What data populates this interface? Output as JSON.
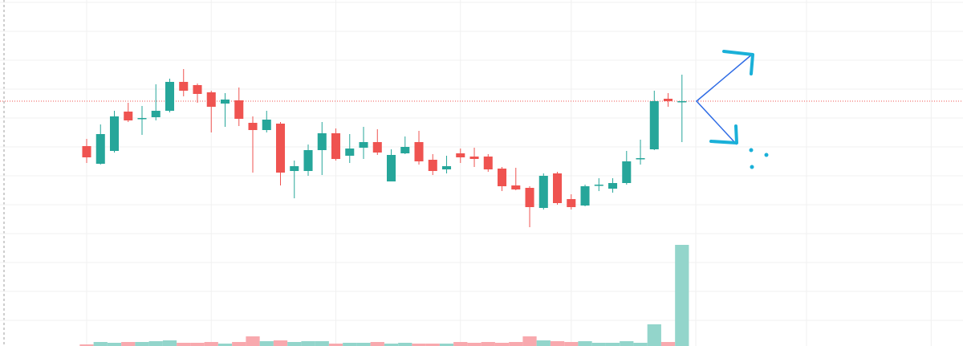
{
  "chart_data": {
    "type": "candlestick",
    "x": [
      0,
      1,
      2,
      3,
      4,
      5,
      6,
      7,
      8,
      9,
      10,
      11,
      12,
      13,
      14,
      15,
      16,
      17,
      18,
      19,
      20,
      21,
      22,
      23,
      24,
      25,
      26,
      27,
      28,
      29,
      30,
      31,
      32,
      33,
      34,
      35,
      36,
      37,
      38,
      39,
      40,
      41,
      42,
      43
    ],
    "open": [
      249,
      227,
      243,
      292,
      284,
      285,
      293,
      329,
      325,
      316,
      302,
      306,
      278,
      269,
      277,
      218,
      218,
      244,
      265,
      237,
      247,
      254,
      205,
      240,
      254,
      232,
      220,
      240,
      236,
      236,
      221,
      200,
      197,
      172,
      215,
      183,
      175,
      200,
      196,
      203,
      233,
      245,
      308,
      305
    ],
    "high": [
      258,
      276,
      293,
      303,
      299,
      326,
      333,
      345,
      327,
      318,
      315,
      322,
      286,
      293,
      279,
      231,
      251,
      279,
      271,
      264,
      273,
      270,
      245,
      261,
      268,
      239,
      237,
      246,
      247,
      239,
      223,
      222,
      199,
      215,
      217,
      189,
      201,
      209,
      209,
      243,
      257,
      318,
      315,
      338
    ],
    "low": [
      228,
      226,
      241,
      279,
      263,
      281,
      291,
      311,
      303,
      266,
      273,
      274,
      216,
      266,
      200,
      184,
      212,
      213,
      231,
      228,
      233,
      238,
      205,
      239,
      226,
      213,
      215,
      228,
      223,
      217,
      193,
      194,
      148,
      170,
      176,
      170,
      174,
      193,
      191,
      201,
      226,
      244,
      298,
      254
    ],
    "close": [
      235,
      264,
      286,
      281,
      284,
      293,
      329,
      318,
      314,
      298,
      307,
      283,
      269,
      282,
      216,
      224,
      244,
      265,
      233,
      246,
      254,
      241,
      238,
      248,
      230,
      218,
      224,
      235,
      233,
      220,
      199,
      195,
      173,
      212,
      178,
      173,
      199,
      201,
      203,
      230,
      234,
      305,
      305,
      305
    ],
    "volume": [
      2,
      5,
      4,
      5,
      5,
      6,
      7,
      4,
      4,
      5,
      3,
      5,
      12,
      6,
      7,
      5,
      6,
      6,
      3,
      4,
      4,
      5,
      3,
      4,
      3,
      3,
      3,
      5,
      4,
      5,
      4,
      5,
      12,
      7,
      6,
      5,
      6,
      4,
      4,
      6,
      4,
      27,
      5,
      126
    ],
    "up_color": "#26a69a",
    "down_color": "#ef5350",
    "volume_up_color": "#93d5cb",
    "volume_down_color": "#f8a9ae",
    "price_line": 305,
    "price_line_color": "#ef5350",
    "xlim": [
      -6.26,
      63.3
    ],
    "ylim": [
      0,
      431
    ],
    "xticks": [
      0,
      9,
      18,
      27,
      35,
      44,
      52,
      61
    ],
    "yticks": [
      428,
      392,
      356,
      320,
      284,
      248,
      212,
      176,
      140,
      104,
      68,
      32
    ],
    "grid": true
  }
}
